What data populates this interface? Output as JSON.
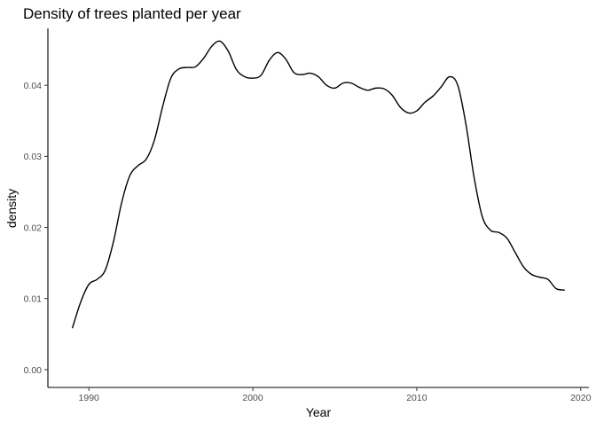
{
  "chart_data": {
    "type": "line",
    "title": "Density of trees planted per year",
    "xlabel": "Year",
    "ylabel": "density",
    "xlim": [
      1987.5,
      2020.5
    ],
    "ylim": [
      -0.0025,
      0.048
    ],
    "x_ticks": [
      1990,
      2000,
      2010,
      2020
    ],
    "y_ticks": [
      0.0,
      0.01,
      0.02,
      0.03,
      0.04
    ],
    "x_tick_labels": [
      "1990",
      "2000",
      "2010",
      "2020"
    ],
    "y_tick_labels": [
      "0.00",
      "0.01",
      "0.02",
      "0.03",
      "0.04"
    ],
    "grid": false,
    "line_color": "#000000",
    "series": [
      {
        "x": [
          1989.0,
          1989.5,
          1990.0,
          1990.5,
          1991.0,
          1991.5,
          1992.0,
          1992.5,
          1993.0,
          1993.5,
          1994.0,
          1994.5,
          1995.0,
          1995.5,
          1996.0,
          1996.5,
          1997.0,
          1997.5,
          1998.0,
          1998.5,
          1999.0,
          1999.5,
          2000.0,
          2000.5,
          2001.0,
          2001.5,
          2002.0,
          2002.5,
          2003.0,
          2003.5,
          2004.0,
          2004.5,
          2005.0,
          2005.5,
          2006.0,
          2006.5,
          2007.0,
          2007.5,
          2008.0,
          2008.5,
          2009.0,
          2009.5,
          2010.0,
          2010.5,
          2011.0,
          2011.5,
          2012.0,
          2012.5,
          2013.0,
          2013.5,
          2014.0,
          2014.5,
          2015.0,
          2015.5,
          2016.0,
          2016.5,
          2017.0,
          2017.5,
          2018.0,
          2018.5,
          2019.0
        ],
        "y": [
          0.0059,
          0.0095,
          0.012,
          0.0127,
          0.014,
          0.018,
          0.0235,
          0.0273,
          0.0287,
          0.0296,
          0.0323,
          0.037,
          0.041,
          0.0423,
          0.0425,
          0.0426,
          0.0438,
          0.0455,
          0.0462,
          0.0448,
          0.0422,
          0.0412,
          0.041,
          0.0414,
          0.0435,
          0.0446,
          0.0437,
          0.0418,
          0.0415,
          0.0417,
          0.0412,
          0.04,
          0.0396,
          0.0403,
          0.0403,
          0.0397,
          0.0393,
          0.0396,
          0.0395,
          0.0386,
          0.0369,
          0.0361,
          0.0364,
          0.0376,
          0.0385,
          0.0398,
          0.0412,
          0.04,
          0.0345,
          0.027,
          0.0215,
          0.0196,
          0.0193,
          0.0185,
          0.0165,
          0.0145,
          0.0134,
          0.013,
          0.0127,
          0.0114,
          0.0112
        ]
      }
    ]
  }
}
